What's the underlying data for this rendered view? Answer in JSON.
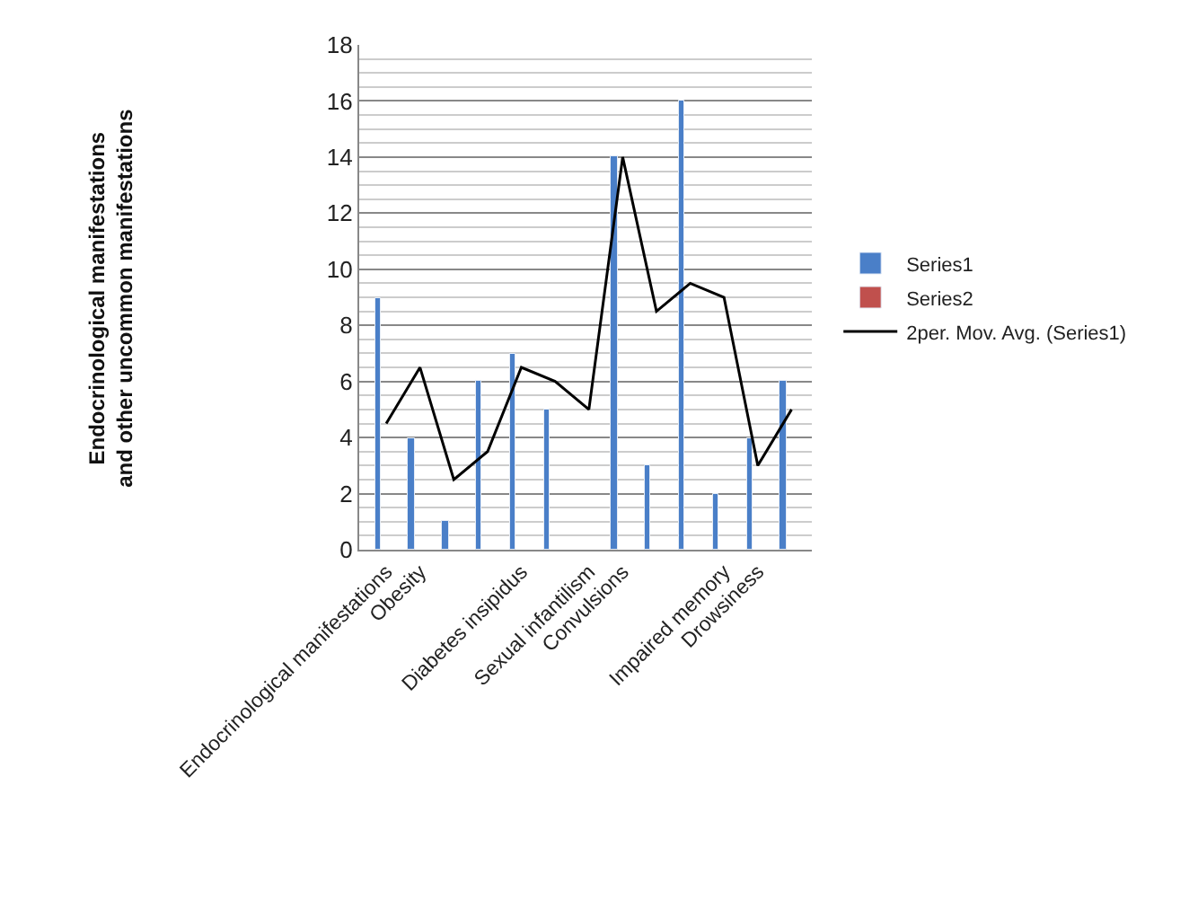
{
  "chart_data": {
    "type": "bar",
    "ylabel": "Endocrinological manifestations and other uncommon manifestations",
    "categories": [
      "Endocrinological manifestations",
      "Obesity",
      null,
      null,
      "Diabetes insipidus",
      null,
      "Sexual infantilism",
      "Convulsions",
      null,
      null,
      "Impaired memory",
      "Drowsiness",
      null
    ],
    "series": [
      {
        "name": "Series1",
        "color": "#4a7fc8",
        "values": [
          9,
          4,
          1,
          6,
          7,
          5,
          null,
          14,
          3,
          16,
          2,
          4,
          6
        ]
      },
      {
        "name": "Series2",
        "color": "#c0504d",
        "values": [
          null,
          null,
          null,
          null,
          null,
          null,
          null,
          null,
          null,
          null,
          null,
          null,
          null
        ]
      },
      {
        "name": "2per. Mov. Avg. (Series1)",
        "type": "line",
        "color": "#000000",
        "values": [
          4.5,
          6.5,
          2.5,
          3.5,
          6.5,
          6,
          5,
          14,
          8.5,
          9.5,
          9,
          3,
          5
        ]
      }
    ],
    "ylim": [
      0,
      18
    ],
    "yticks": [
      0,
      2,
      4,
      6,
      8,
      10,
      12,
      14,
      16,
      18
    ],
    "grid": "y",
    "legend": "right",
    "marker": "none",
    "line_style": "solid"
  }
}
